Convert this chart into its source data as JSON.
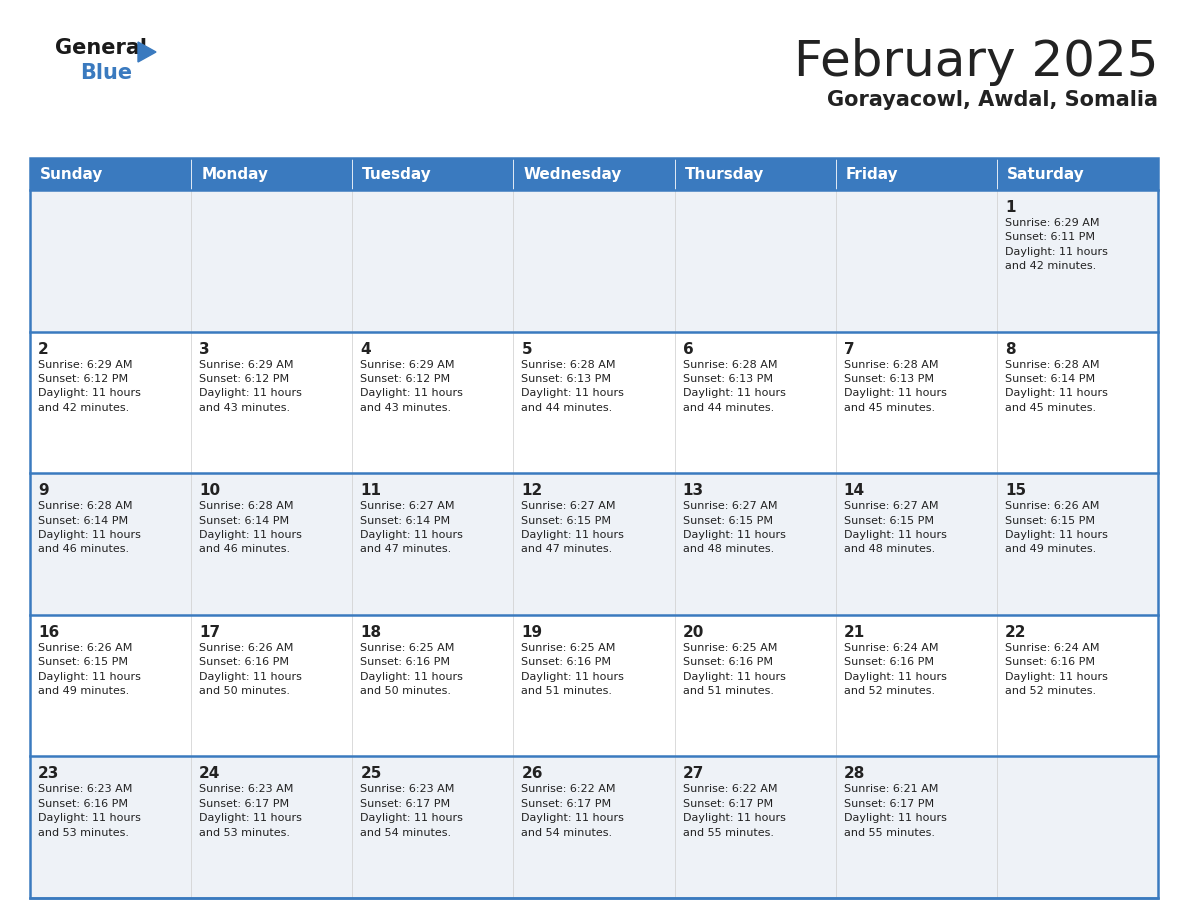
{
  "title": "February 2025",
  "subtitle": "Gorayacowl, Awdal, Somalia",
  "header_bg": "#3a7abf",
  "header_text": "#ffffff",
  "row_bg_light": "#eef2f7",
  "row_bg_white": "#ffffff",
  "border_color": "#3a7abf",
  "cell_border_color": "#cccccc",
  "text_color": "#222222",
  "days_of_week": [
    "Sunday",
    "Monday",
    "Tuesday",
    "Wednesday",
    "Thursday",
    "Friday",
    "Saturday"
  ],
  "calendar_data": [
    [
      {
        "day": "",
        "info": ""
      },
      {
        "day": "",
        "info": ""
      },
      {
        "day": "",
        "info": ""
      },
      {
        "day": "",
        "info": ""
      },
      {
        "day": "",
        "info": ""
      },
      {
        "day": "",
        "info": ""
      },
      {
        "day": "1",
        "info": "Sunrise: 6:29 AM\nSunset: 6:11 PM\nDaylight: 11 hours\nand 42 minutes."
      }
    ],
    [
      {
        "day": "2",
        "info": "Sunrise: 6:29 AM\nSunset: 6:12 PM\nDaylight: 11 hours\nand 42 minutes."
      },
      {
        "day": "3",
        "info": "Sunrise: 6:29 AM\nSunset: 6:12 PM\nDaylight: 11 hours\nand 43 minutes."
      },
      {
        "day": "4",
        "info": "Sunrise: 6:29 AM\nSunset: 6:12 PM\nDaylight: 11 hours\nand 43 minutes."
      },
      {
        "day": "5",
        "info": "Sunrise: 6:28 AM\nSunset: 6:13 PM\nDaylight: 11 hours\nand 44 minutes."
      },
      {
        "day": "6",
        "info": "Sunrise: 6:28 AM\nSunset: 6:13 PM\nDaylight: 11 hours\nand 44 minutes."
      },
      {
        "day": "7",
        "info": "Sunrise: 6:28 AM\nSunset: 6:13 PM\nDaylight: 11 hours\nand 45 minutes."
      },
      {
        "day": "8",
        "info": "Sunrise: 6:28 AM\nSunset: 6:14 PM\nDaylight: 11 hours\nand 45 minutes."
      }
    ],
    [
      {
        "day": "9",
        "info": "Sunrise: 6:28 AM\nSunset: 6:14 PM\nDaylight: 11 hours\nand 46 minutes."
      },
      {
        "day": "10",
        "info": "Sunrise: 6:28 AM\nSunset: 6:14 PM\nDaylight: 11 hours\nand 46 minutes."
      },
      {
        "day": "11",
        "info": "Sunrise: 6:27 AM\nSunset: 6:14 PM\nDaylight: 11 hours\nand 47 minutes."
      },
      {
        "day": "12",
        "info": "Sunrise: 6:27 AM\nSunset: 6:15 PM\nDaylight: 11 hours\nand 47 minutes."
      },
      {
        "day": "13",
        "info": "Sunrise: 6:27 AM\nSunset: 6:15 PM\nDaylight: 11 hours\nand 48 minutes."
      },
      {
        "day": "14",
        "info": "Sunrise: 6:27 AM\nSunset: 6:15 PM\nDaylight: 11 hours\nand 48 minutes."
      },
      {
        "day": "15",
        "info": "Sunrise: 6:26 AM\nSunset: 6:15 PM\nDaylight: 11 hours\nand 49 minutes."
      }
    ],
    [
      {
        "day": "16",
        "info": "Sunrise: 6:26 AM\nSunset: 6:15 PM\nDaylight: 11 hours\nand 49 minutes."
      },
      {
        "day": "17",
        "info": "Sunrise: 6:26 AM\nSunset: 6:16 PM\nDaylight: 11 hours\nand 50 minutes."
      },
      {
        "day": "18",
        "info": "Sunrise: 6:25 AM\nSunset: 6:16 PM\nDaylight: 11 hours\nand 50 minutes."
      },
      {
        "day": "19",
        "info": "Sunrise: 6:25 AM\nSunset: 6:16 PM\nDaylight: 11 hours\nand 51 minutes."
      },
      {
        "day": "20",
        "info": "Sunrise: 6:25 AM\nSunset: 6:16 PM\nDaylight: 11 hours\nand 51 minutes."
      },
      {
        "day": "21",
        "info": "Sunrise: 6:24 AM\nSunset: 6:16 PM\nDaylight: 11 hours\nand 52 minutes."
      },
      {
        "day": "22",
        "info": "Sunrise: 6:24 AM\nSunset: 6:16 PM\nDaylight: 11 hours\nand 52 minutes."
      }
    ],
    [
      {
        "day": "23",
        "info": "Sunrise: 6:23 AM\nSunset: 6:16 PM\nDaylight: 11 hours\nand 53 minutes."
      },
      {
        "day": "24",
        "info": "Sunrise: 6:23 AM\nSunset: 6:17 PM\nDaylight: 11 hours\nand 53 minutes."
      },
      {
        "day": "25",
        "info": "Sunrise: 6:23 AM\nSunset: 6:17 PM\nDaylight: 11 hours\nand 54 minutes."
      },
      {
        "day": "26",
        "info": "Sunrise: 6:22 AM\nSunset: 6:17 PM\nDaylight: 11 hours\nand 54 minutes."
      },
      {
        "day": "27",
        "info": "Sunrise: 6:22 AM\nSunset: 6:17 PM\nDaylight: 11 hours\nand 55 minutes."
      },
      {
        "day": "28",
        "info": "Sunrise: 6:21 AM\nSunset: 6:17 PM\nDaylight: 11 hours\nand 55 minutes."
      },
      {
        "day": "",
        "info": ""
      }
    ]
  ]
}
